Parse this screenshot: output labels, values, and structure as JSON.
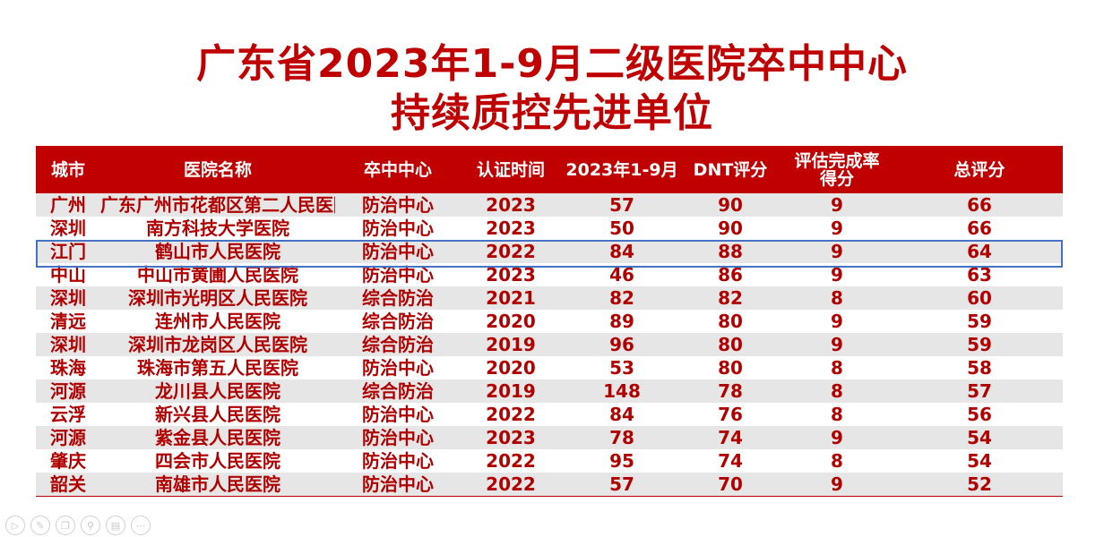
{
  "title": {
    "line1": "广东省2023年1-9月二级医院卒中中心",
    "line2": "持续质控先进单位"
  },
  "table": {
    "headers": [
      "城市",
      "医院名称",
      "卒中中心",
      "认证时间",
      "2023年1-9月",
      "DNT评分",
      "评估完成率得分",
      "总评分"
    ],
    "header_line_1": "评估完成率",
    "header_line_2": "得分",
    "rows": [
      [
        "广州",
        "广东广州市花都区第二人民医院",
        "防治中心",
        "2023",
        "57",
        "90",
        "9",
        "66"
      ],
      [
        "深圳",
        "南方科技大学医院",
        "防治中心",
        "2023",
        "50",
        "90",
        "9",
        "66"
      ],
      [
        "江门",
        "鹤山市人民医院",
        "防治中心",
        "2022",
        "84",
        "88",
        "9",
        "64"
      ],
      [
        "中山",
        "中山市黄圃人民医院",
        "防治中心",
        "2023",
        "46",
        "86",
        "9",
        "63"
      ],
      [
        "深圳",
        "深圳市光明区人民医院",
        "综合防治",
        "2021",
        "82",
        "82",
        "8",
        "60"
      ],
      [
        "清远",
        "连州市人民医院",
        "综合防治",
        "2020",
        "89",
        "80",
        "9",
        "59"
      ],
      [
        "深圳",
        "深圳市龙岗区人民医院",
        "综合防治",
        "2019",
        "96",
        "80",
        "9",
        "59"
      ],
      [
        "珠海",
        "珠海市第五人民医院",
        "防治中心",
        "2020",
        "53",
        "80",
        "8",
        "58"
      ],
      [
        "河源",
        "龙川县人民医院",
        "综合防治",
        "2019",
        "148",
        "78",
        "8",
        "57"
      ],
      [
        "云浮",
        "新兴县人民医院",
        "防治中心",
        "2022",
        "84",
        "76",
        "8",
        "56"
      ],
      [
        "河源",
        "紫金县人民医院",
        "防治中心",
        "2023",
        "78",
        "74",
        "9",
        "54"
      ],
      [
        "肇庆",
        "四会市人民医院",
        "防治中心",
        "2022",
        "95",
        "74",
        "8",
        "54"
      ],
      [
        "韶关",
        "南雄市人民医院",
        "防治中心",
        "2022",
        "57",
        "70",
        "9",
        "52"
      ]
    ],
    "highlighted_row": 2
  },
  "colors": {
    "accent": "#c00000",
    "row_stripe": "#e6e6e6",
    "highlight_border": "#4472c4"
  },
  "toolbar": {
    "icons": [
      "play-icon",
      "pen-icon",
      "copy-icon",
      "zoom-icon",
      "slides-icon",
      "more-icon"
    ]
  }
}
